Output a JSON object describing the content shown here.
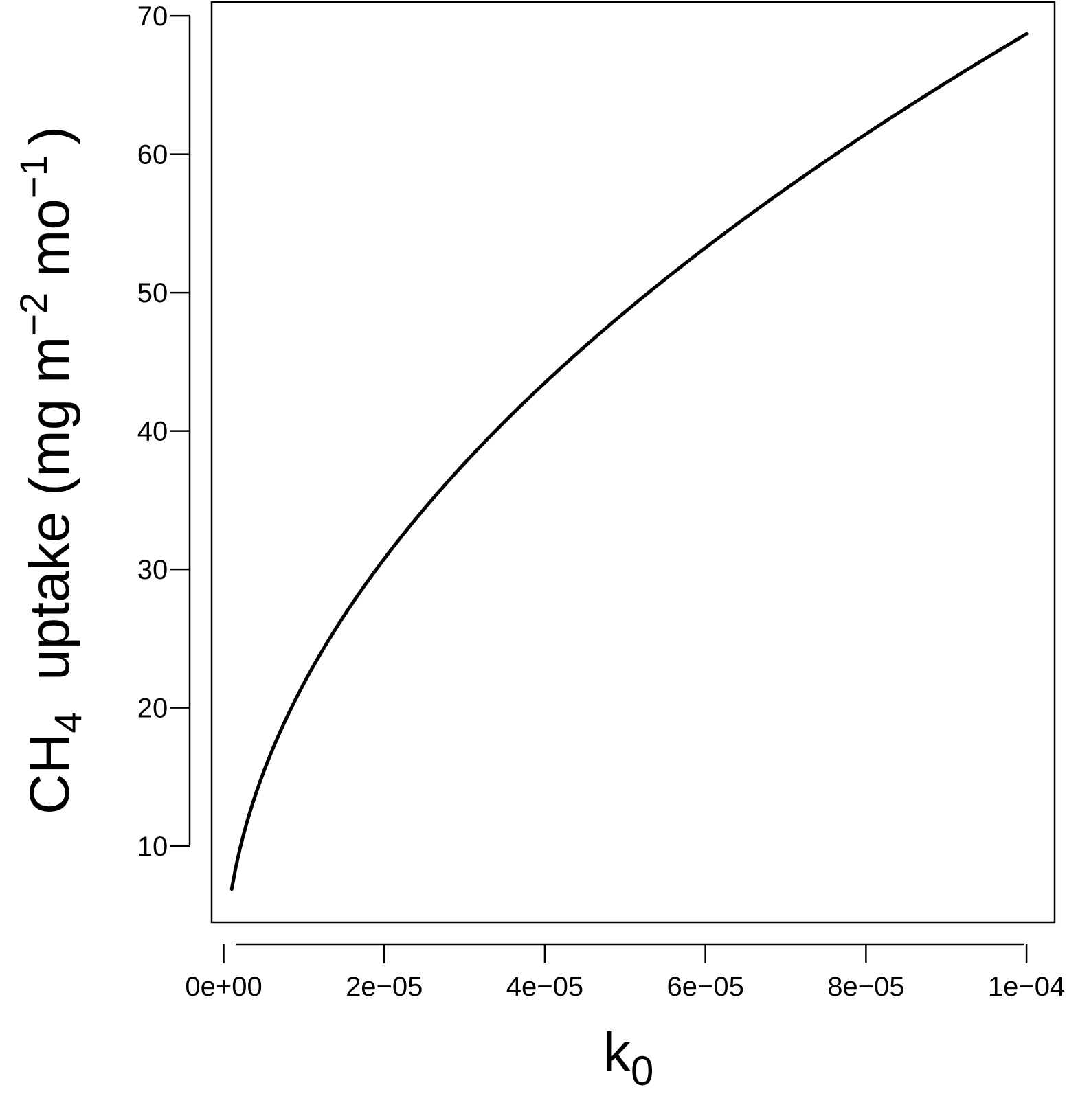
{
  "chart_data": {
    "type": "line",
    "title": "",
    "xlabel": {
      "base": "k",
      "sub": "0"
    },
    "ylabel": {
      "prefix": "CH",
      "sub4": "4",
      "mid1": "  uptake (mg m",
      "sup1": "−2",
      "mid2": " mo",
      "sup2": "−1",
      "suffix": ")"
    },
    "xlim": [
      -1.5e-06,
      0.0001035
    ],
    "ylim": [
      4.5,
      71
    ],
    "x_ticks": [
      0,
      2e-05,
      4e-05,
      6e-05,
      8e-05,
      0.0001
    ],
    "x_tick_labels": [
      "0e+00",
      "2e−05",
      "4e−05",
      "6e−05",
      "8e−05",
      "1e−04"
    ],
    "y_ticks": [
      10,
      20,
      30,
      40,
      50,
      60,
      70
    ],
    "y_tick_labels": [
      "10",
      "20",
      "30",
      "40",
      "50",
      "60",
      "70"
    ],
    "grid": false,
    "series": [
      {
        "x": [
          1e-06,
          2e-06,
          3e-06,
          4e-06,
          5e-06,
          6e-06,
          8e-06,
          1e-05,
          1.2e-05,
          1.5e-05,
          2e-05,
          2.5e-05,
          3e-05,
          3.5e-05,
          4e-05,
          4.5e-05,
          5e-05,
          5.5e-05,
          6e-05,
          6.5e-05,
          7e-05,
          7.5e-05,
          8e-05,
          8.5e-05,
          9e-05,
          9.5e-05,
          0.0001
        ],
        "y": [
          6.9,
          9.7,
          11.8,
          13.6,
          15.2,
          16.6,
          19.2,
          21.4,
          23.5,
          26.4,
          30.8,
          34.8,
          38.5,
          41.9,
          45.2,
          48.3,
          51.3,
          54.1,
          56.8,
          59.4,
          61.9,
          64.3,
          66.6,
          68.8,
          70.9,
          72.8,
          68.7
        ]
      }
    ]
  }
}
